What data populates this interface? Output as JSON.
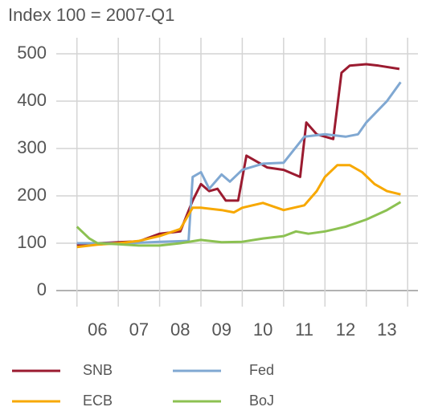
{
  "chart_data": {
    "type": "line",
    "subtitle": "Index 100 = 2007-Q1",
    "xlim": [
      2005.5,
      2014.25
    ],
    "xticks": [
      {
        "value": 2006.5,
        "label": "06"
      },
      {
        "value": 2007.5,
        "label": "07"
      },
      {
        "value": 2008.5,
        "label": "08"
      },
      {
        "value": 2009.5,
        "label": "09"
      },
      {
        "value": 2010.5,
        "label": "10"
      },
      {
        "value": 2011.5,
        "label": "11"
      },
      {
        "value": 2012.5,
        "label": "12"
      },
      {
        "value": 2013.5,
        "label": "13"
      }
    ],
    "xminorticks": [
      2006,
      2007,
      2008,
      2009,
      2010,
      2011,
      2012,
      2013,
      2014
    ],
    "ylim": [
      0,
      500
    ],
    "yticks": [
      0,
      100,
      200,
      300,
      400,
      500
    ],
    "grid": true,
    "legend": "bottom",
    "series": [
      {
        "name": "SNB",
        "color": "#9b1b30",
        "x": [
          2006.0,
          2006.5,
          2007.0,
          2007.5,
          2008.0,
          2008.5,
          2008.8,
          2009.0,
          2009.2,
          2009.4,
          2009.6,
          2009.9,
          2010.1,
          2010.3,
          2010.6,
          2011.0,
          2011.4,
          2011.55,
          2011.8,
          2012.2,
          2012.4,
          2012.6,
          2013.0,
          2013.3,
          2013.8
        ],
        "values": [
          97,
          100,
          102,
          104,
          120,
          125,
          190,
          225,
          210,
          215,
          190,
          190,
          285,
          275,
          260,
          255,
          240,
          355,
          330,
          320,
          460,
          475,
          478,
          475,
          468
        ]
      },
      {
        "name": "Fed",
        "color": "#80a8d2",
        "x": [
          2006.0,
          2006.5,
          2007.0,
          2007.5,
          2008.0,
          2008.7,
          2008.8,
          2009.0,
          2009.2,
          2009.5,
          2009.7,
          2010.0,
          2010.5,
          2011.0,
          2011.5,
          2012.0,
          2012.5,
          2012.8,
          2013.0,
          2013.5,
          2013.83
        ],
        "values": [
          100,
          100,
          100,
          101,
          103,
          105,
          240,
          250,
          215,
          245,
          230,
          255,
          268,
          270,
          325,
          330,
          325,
          330,
          355,
          400,
          440
        ]
      },
      {
        "name": "ECB",
        "color": "#f7a800",
        "x": [
          2006.0,
          2006.5,
          2007.0,
          2007.5,
          2008.0,
          2008.5,
          2008.8,
          2009.0,
          2009.5,
          2009.8,
          2010.0,
          2010.5,
          2011.0,
          2011.5,
          2011.8,
          2012.0,
          2012.3,
          2012.6,
          2012.9,
          2013.2,
          2013.5,
          2013.83
        ],
        "values": [
          92,
          97,
          100,
          105,
          115,
          130,
          175,
          175,
          170,
          165,
          175,
          185,
          170,
          180,
          210,
          240,
          265,
          265,
          250,
          225,
          210,
          203
        ]
      },
      {
        "name": "BoJ",
        "color": "#8cc152",
        "x": [
          2006.0,
          2006.3,
          2006.5,
          2007.0,
          2007.5,
          2008.0,
          2008.5,
          2009.0,
          2009.5,
          2010.0,
          2010.5,
          2011.0,
          2011.3,
          2011.6,
          2012.0,
          2012.5,
          2013.0,
          2013.5,
          2013.83
        ],
        "values": [
          135,
          110,
          100,
          98,
          95,
          95,
          100,
          107,
          102,
          103,
          110,
          115,
          125,
          120,
          125,
          135,
          150,
          170,
          187
        ]
      }
    ]
  }
}
